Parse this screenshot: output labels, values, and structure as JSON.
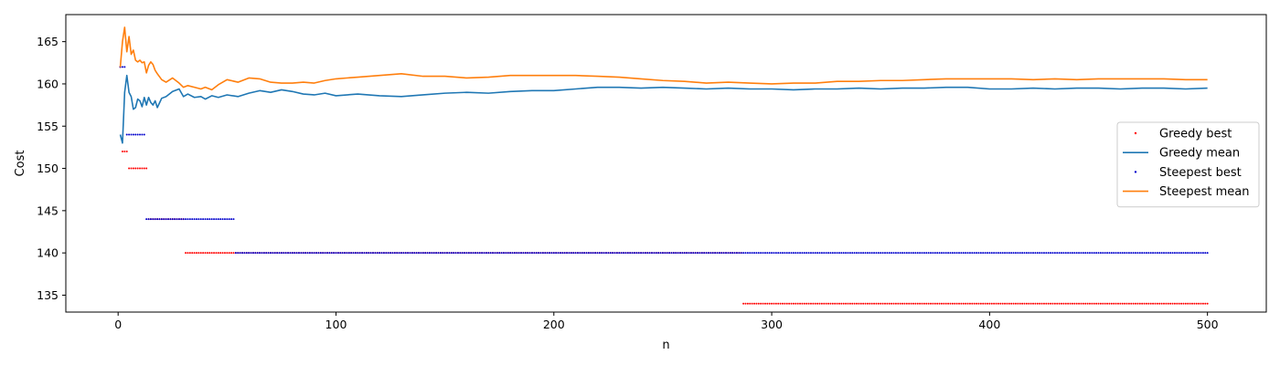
{
  "chart_data": {
    "type": "line",
    "title": "",
    "xlabel": "n",
    "ylabel": "Cost",
    "xlim": [
      -24,
      527
    ],
    "ylim": [
      133,
      168.2
    ],
    "xticks": [
      0,
      100,
      200,
      300,
      400,
      500
    ],
    "yticks": [
      135,
      140,
      145,
      150,
      155,
      160,
      165
    ],
    "grid": false,
    "legend_position": "center-right",
    "series": [
      {
        "name": "Greedy best",
        "kind": "points",
        "color": "#ff0000",
        "segments": [
          {
            "from": 1,
            "to": 1,
            "value": 162
          },
          {
            "from": 2,
            "to": 4,
            "value": 152
          },
          {
            "from": 5,
            "to": 13,
            "value": 150
          },
          {
            "from": 14,
            "to": 30,
            "value": 144
          },
          {
            "from": 31,
            "to": 286,
            "value": 140
          },
          {
            "from": 287,
            "to": 500,
            "value": 134
          }
        ]
      },
      {
        "name": "Greedy mean",
        "kind": "line",
        "color": "#1f77b4",
        "x": [
          1,
          2,
          3,
          4,
          5,
          6,
          7,
          8,
          9,
          10,
          11,
          12,
          13,
          14,
          15,
          16,
          17,
          18,
          20,
          22,
          25,
          28,
          30,
          32,
          35,
          38,
          40,
          43,
          46,
          50,
          55,
          60,
          65,
          70,
          75,
          80,
          85,
          90,
          95,
          100,
          110,
          120,
          130,
          140,
          150,
          160,
          170,
          180,
          190,
          200,
          210,
          220,
          230,
          240,
          250,
          260,
          270,
          280,
          290,
          300,
          310,
          320,
          330,
          340,
          350,
          360,
          370,
          380,
          390,
          400,
          410,
          420,
          430,
          440,
          450,
          460,
          470,
          480,
          490,
          500
        ],
        "y": [
          154,
          153,
          159,
          161,
          159,
          158.5,
          157,
          157.2,
          158.2,
          158,
          157.3,
          158.4,
          157.5,
          158.4,
          157.8,
          157.5,
          158,
          157.2,
          158.3,
          158.5,
          159.1,
          159.4,
          158.5,
          158.8,
          158.4,
          158.5,
          158.2,
          158.6,
          158.4,
          158.7,
          158.5,
          158.9,
          159.2,
          159,
          159.3,
          159.1,
          158.8,
          158.7,
          158.9,
          158.6,
          158.8,
          158.6,
          158.5,
          158.7,
          158.9,
          159,
          158.9,
          159.1,
          159.2,
          159.2,
          159.4,
          159.6,
          159.6,
          159.5,
          159.6,
          159.5,
          159.4,
          159.5,
          159.4,
          159.4,
          159.3,
          159.4,
          159.4,
          159.5,
          159.4,
          159.5,
          159.5,
          159.6,
          159.6,
          159.4,
          159.4,
          159.5,
          159.4,
          159.5,
          159.5,
          159.4,
          159.5,
          159.5,
          159.4,
          159.5
        ]
      },
      {
        "name": "Steepest best",
        "kind": "points",
        "color": "#0000cc",
        "segments": [
          {
            "from": 1,
            "to": 3,
            "value": 162
          },
          {
            "from": 4,
            "to": 12,
            "value": 154
          },
          {
            "from": 13,
            "to": 53,
            "value": 144
          },
          {
            "from": 54,
            "to": 500,
            "value": 140
          }
        ]
      },
      {
        "name": "Steepest mean",
        "kind": "line",
        "color": "#ff7f0e",
        "x": [
          1,
          2,
          3,
          4,
          5,
          6,
          7,
          8,
          9,
          10,
          11,
          12,
          13,
          14,
          15,
          16,
          17,
          18,
          20,
          22,
          25,
          28,
          30,
          32,
          35,
          38,
          40,
          43,
          46,
          50,
          55,
          60,
          65,
          70,
          75,
          80,
          85,
          90,
          95,
          100,
          110,
          120,
          130,
          140,
          150,
          160,
          170,
          180,
          190,
          200,
          210,
          220,
          230,
          240,
          250,
          260,
          270,
          280,
          290,
          300,
          310,
          320,
          330,
          340,
          350,
          360,
          370,
          380,
          390,
          400,
          410,
          420,
          430,
          440,
          450,
          460,
          470,
          480,
          490,
          500
        ],
        "y": [
          162,
          165,
          166.7,
          163.8,
          165.6,
          163.5,
          164,
          162.8,
          162.6,
          162.8,
          162.5,
          162.6,
          161.3,
          162.2,
          162.6,
          162.3,
          161.6,
          161.2,
          160.5,
          160.2,
          160.7,
          160.1,
          159.6,
          159.8,
          159.6,
          159.4,
          159.6,
          159.3,
          159.9,
          160.5,
          160.2,
          160.7,
          160.6,
          160.2,
          160.1,
          160.1,
          160.2,
          160.1,
          160.4,
          160.6,
          160.8,
          161.0,
          161.2,
          160.9,
          160.9,
          160.7,
          160.8,
          161.0,
          161.0,
          161.0,
          161.0,
          160.9,
          160.8,
          160.6,
          160.4,
          160.3,
          160.1,
          160.2,
          160.1,
          160.0,
          160.1,
          160.1,
          160.3,
          160.3,
          160.4,
          160.4,
          160.5,
          160.6,
          160.6,
          160.6,
          160.6,
          160.5,
          160.6,
          160.5,
          160.6,
          160.6,
          160.6,
          160.6,
          160.5,
          160.5
        ]
      }
    ]
  }
}
